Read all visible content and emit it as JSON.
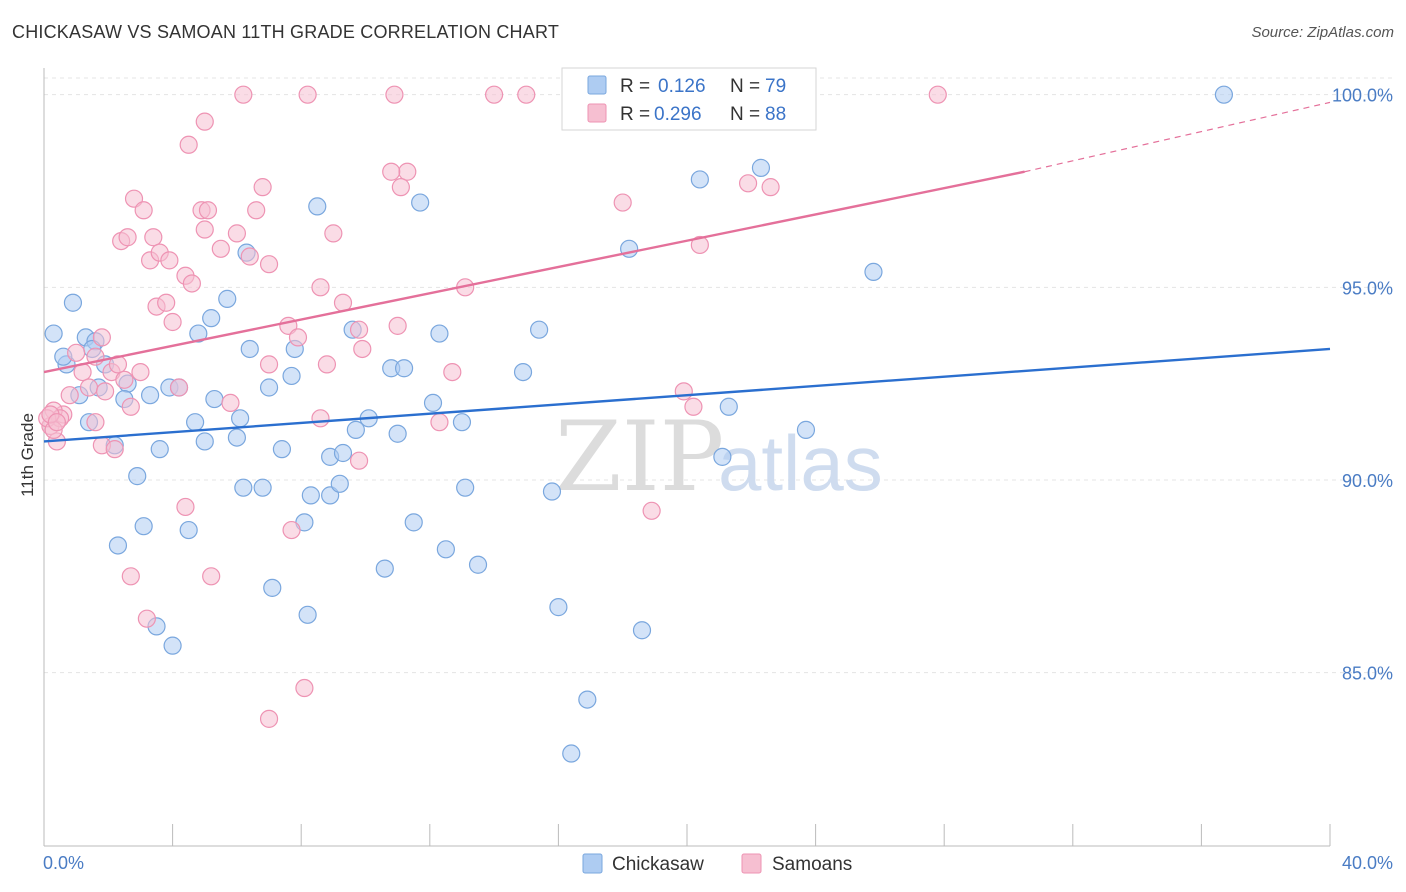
{
  "header": {
    "title": "CHICKASAW VS SAMOAN 11TH GRADE CORRELATION CHART",
    "source": "Source: ZipAtlas.com"
  },
  "watermark": {
    "zip": "ZIP",
    "atlas": "atlas"
  },
  "legend": {
    "chickasaw": {
      "r_label": "R = ",
      "r_value": "0.126",
      "n_label": "N = ",
      "n_value": "79"
    },
    "samoans": {
      "r_label": "R = ",
      "r_value": "0.296",
      "n_label": "N = ",
      "n_value": "88"
    }
  },
  "colors": {
    "chickasaw_fill": "#aeccf2",
    "chickasaw_stroke": "#7aa7de",
    "chickasaw_line": "#2b6fcf",
    "samoans_fill": "#f6bfd1",
    "samoans_stroke": "#ee93b3",
    "samoans_line": "#e4709a",
    "tick_label": "#4a7cc4",
    "grid": "#e4e4e4"
  },
  "chart_data": {
    "type": "scatter",
    "title": "CHICKASAW VS SAMOAN 11TH GRADE CORRELATION CHART",
    "xlabel": "",
    "ylabel": "11th Grade",
    "xlim": [
      0,
      40
    ],
    "ylim": [
      80.5,
      100.9
    ],
    "x_tick_labels": [
      "0.0%",
      "40.0%"
    ],
    "y_ticks": [
      85,
      90,
      95,
      100
    ],
    "y_tick_labels": [
      "85.0%",
      "90.0%",
      "95.0%",
      "100.0%"
    ],
    "grid": true,
    "legend_position": "top-center",
    "series": [
      {
        "name": "Chickasaw",
        "r": 0.126,
        "n": 79,
        "trend": {
          "x": [
            0,
            40
          ],
          "y": [
            91.0,
            93.4
          ]
        },
        "points": [
          [
            0.3,
            93.8
          ],
          [
            0.7,
            93.0
          ],
          [
            0.9,
            94.6
          ],
          [
            0.6,
            93.2
          ],
          [
            1.3,
            93.7
          ],
          [
            1.6,
            93.6
          ],
          [
            1.9,
            93.0
          ],
          [
            1.5,
            93.4
          ],
          [
            1.7,
            92.4
          ],
          [
            2.6,
            92.5
          ],
          [
            2.5,
            92.1
          ],
          [
            3.3,
            92.2
          ],
          [
            3.9,
            92.4
          ],
          [
            4.2,
            92.4
          ],
          [
            1.1,
            92.2
          ],
          [
            4.8,
            93.8
          ],
          [
            5.2,
            94.2
          ],
          [
            5.7,
            94.7
          ],
          [
            6.3,
            95.9
          ],
          [
            6.4,
            93.4
          ],
          [
            7.8,
            93.4
          ],
          [
            7.7,
            92.7
          ],
          [
            7.0,
            92.4
          ],
          [
            8.5,
            97.1
          ],
          [
            11.7,
            97.2
          ],
          [
            9.6,
            93.9
          ],
          [
            10.8,
            92.9
          ],
          [
            11.2,
            92.9
          ],
          [
            12.3,
            93.8
          ],
          [
            12.1,
            92.0
          ],
          [
            5.3,
            92.1
          ],
          [
            6.1,
            91.6
          ],
          [
            4.7,
            91.5
          ],
          [
            3.6,
            90.8
          ],
          [
            2.2,
            90.9
          ],
          [
            1.4,
            91.5
          ],
          [
            5.0,
            91.0
          ],
          [
            6.0,
            91.1
          ],
          [
            7.4,
            90.8
          ],
          [
            8.9,
            90.6
          ],
          [
            9.3,
            90.7
          ],
          [
            9.7,
            91.3
          ],
          [
            10.1,
            91.6
          ],
          [
            11.0,
            91.2
          ],
          [
            13.0,
            91.5
          ],
          [
            11.5,
            88.9
          ],
          [
            12.5,
            88.2
          ],
          [
            13.5,
            87.8
          ],
          [
            10.6,
            87.7
          ],
          [
            7.1,
            87.2
          ],
          [
            8.2,
            86.5
          ],
          [
            8.1,
            88.9
          ],
          [
            8.3,
            89.6
          ],
          [
            8.9,
            89.6
          ],
          [
            9.2,
            89.9
          ],
          [
            6.2,
            89.8
          ],
          [
            6.8,
            89.8
          ],
          [
            2.9,
            90.1
          ],
          [
            3.1,
            88.8
          ],
          [
            4.5,
            88.7
          ],
          [
            2.3,
            88.3
          ],
          [
            3.5,
            86.2
          ],
          [
            4.0,
            85.7
          ],
          [
            13.1,
            89.8
          ],
          [
            15.8,
            89.7
          ],
          [
            16.0,
            86.7
          ],
          [
            16.9,
            84.3
          ],
          [
            16.4,
            82.9
          ],
          [
            18.6,
            86.1
          ],
          [
            21.1,
            90.6
          ],
          [
            21.3,
            91.9
          ],
          [
            23.7,
            91.3
          ],
          [
            15.4,
            93.9
          ],
          [
            14.9,
            92.8
          ],
          [
            18.2,
            96.0
          ],
          [
            20.4,
            97.8
          ],
          [
            22.3,
            98.1
          ],
          [
            25.8,
            95.4
          ],
          [
            36.7,
            100.0
          ]
        ]
      },
      {
        "name": "Samoans",
        "r": 0.296,
        "n": 88,
        "trend": {
          "x": [
            0,
            30.5
          ],
          "y": [
            92.8,
            98.0
          ],
          "dashed_extension": {
            "x": [
              30.5,
              40
            ],
            "y": [
              98.0,
              99.8
            ]
          }
        },
        "points": [
          [
            0.2,
            91.4
          ],
          [
            0.4,
            91.0
          ],
          [
            0.6,
            91.7
          ],
          [
            0.8,
            92.2
          ],
          [
            1.0,
            93.3
          ],
          [
            1.2,
            92.8
          ],
          [
            1.4,
            92.4
          ],
          [
            1.6,
            93.2
          ],
          [
            1.8,
            93.7
          ],
          [
            0.3,
            91.8
          ],
          [
            1.9,
            92.3
          ],
          [
            2.1,
            92.8
          ],
          [
            2.3,
            93.0
          ],
          [
            2.5,
            92.6
          ],
          [
            2.7,
            91.9
          ],
          [
            3.0,
            92.8
          ],
          [
            0.5,
            91.6
          ],
          [
            1.6,
            91.5
          ],
          [
            1.8,
            90.9
          ],
          [
            2.2,
            90.8
          ],
          [
            2.4,
            96.2
          ],
          [
            2.6,
            96.3
          ],
          [
            2.8,
            97.3
          ],
          [
            3.1,
            97.0
          ],
          [
            3.3,
            95.7
          ],
          [
            3.4,
            96.3
          ],
          [
            3.6,
            95.9
          ],
          [
            3.9,
            95.7
          ],
          [
            3.5,
            94.5
          ],
          [
            3.8,
            94.6
          ],
          [
            4.0,
            94.1
          ],
          [
            4.4,
            95.3
          ],
          [
            4.6,
            95.1
          ],
          [
            4.9,
            97.0
          ],
          [
            5.1,
            97.0
          ],
          [
            5.0,
            96.5
          ],
          [
            5.5,
            96.0
          ],
          [
            6.0,
            96.4
          ],
          [
            6.4,
            95.8
          ],
          [
            6.6,
            97.0
          ],
          [
            6.8,
            97.6
          ],
          [
            7.0,
            95.6
          ],
          [
            4.5,
            98.7
          ],
          [
            5.0,
            99.3
          ],
          [
            6.2,
            100.0
          ],
          [
            8.2,
            100.0
          ],
          [
            10.9,
            100.0
          ],
          [
            14.0,
            100.0
          ],
          [
            15.0,
            100.0
          ],
          [
            27.8,
            100.0
          ],
          [
            8.6,
            95.0
          ],
          [
            9.0,
            96.4
          ],
          [
            9.3,
            94.6
          ],
          [
            7.6,
            94.0
          ],
          [
            7.9,
            93.7
          ],
          [
            9.8,
            93.9
          ],
          [
            9.9,
            93.4
          ],
          [
            8.8,
            93.0
          ],
          [
            7.0,
            93.0
          ],
          [
            11.0,
            94.0
          ],
          [
            11.3,
            98.0
          ],
          [
            10.8,
            98.0
          ],
          [
            11.1,
            97.6
          ],
          [
            13.1,
            95.0
          ],
          [
            12.7,
            92.8
          ],
          [
            12.3,
            91.5
          ],
          [
            8.6,
            91.6
          ],
          [
            9.8,
            90.5
          ],
          [
            4.2,
            92.4
          ],
          [
            5.8,
            92.0
          ],
          [
            3.2,
            86.4
          ],
          [
            2.7,
            87.5
          ],
          [
            5.2,
            87.5
          ],
          [
            4.4,
            89.3
          ],
          [
            7.7,
            88.7
          ],
          [
            8.1,
            84.6
          ],
          [
            7.0,
            83.8
          ],
          [
            18.0,
            97.2
          ],
          [
            20.4,
            96.1
          ],
          [
            21.9,
            97.7
          ],
          [
            22.6,
            97.6
          ],
          [
            19.9,
            92.3
          ],
          [
            20.2,
            91.9
          ],
          [
            18.9,
            89.2
          ],
          [
            0.1,
            91.6
          ],
          [
            0.3,
            91.3
          ],
          [
            0.2,
            91.7
          ],
          [
            0.4,
            91.5
          ]
        ]
      }
    ]
  },
  "axis": {
    "y_title": "11th Grade",
    "x_min_label": "0.0%",
    "x_max_label": "40.0%"
  },
  "bottom_legend": {
    "chickasaw": "Chickasaw",
    "samoans": "Samoans"
  }
}
